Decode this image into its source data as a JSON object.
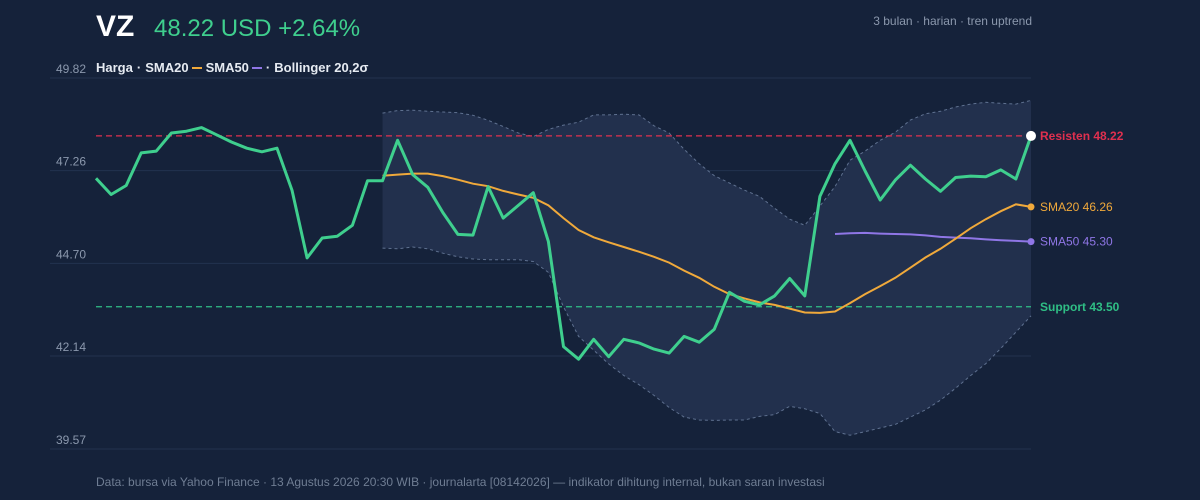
{
  "header": {
    "ticker": "VZ",
    "price_text": "48.22 USD +2.64%",
    "meta": "3 bulan · harian · tren uptrend"
  },
  "legend": {
    "price": "Harga",
    "sep": "·",
    "sma20": "SMA20",
    "sma50": "SMA50",
    "bollinger": "Bollinger 20,2σ"
  },
  "footer": "Data: bursa via Yahoo Finance · 13 Agustus 2026 20:30 WIB · journalarta [08142026] — indikator dihitung internal, bukan saran investasi",
  "colors": {
    "background": "#15223a",
    "price": "#3fcf8e",
    "sma20": "#f0a93b",
    "sma50": "#8f76e6",
    "resistance": "#e0304f",
    "support": "#2fbf85",
    "band_fill": "#22304d",
    "band_edge": "#5f7190"
  },
  "chart_data": {
    "type": "line",
    "x": [
      1,
      2,
      3,
      4,
      5,
      6,
      7,
      8,
      9,
      10,
      11,
      12,
      13,
      14,
      15,
      16,
      17,
      18,
      19,
      20,
      21,
      22,
      23,
      24,
      25,
      26,
      27,
      28,
      29,
      30,
      31,
      32,
      33,
      34,
      35,
      36,
      37,
      38,
      39,
      40,
      41,
      42,
      43,
      44,
      45,
      46,
      47,
      48,
      49,
      50,
      51,
      52,
      53,
      54,
      55,
      56,
      57,
      58,
      59,
      60,
      61,
      62,
      63
    ],
    "ylim": [
      39.57,
      49.82
    ],
    "yticks": [
      "49.82",
      "47.26",
      "44.70",
      "42.14",
      "39.57"
    ],
    "series": [
      {
        "name": "Harga",
        "values": [
          47.05,
          46.6,
          46.85,
          47.75,
          47.8,
          48.3,
          48.35,
          48.45,
          48.25,
          48.05,
          47.88,
          47.78,
          47.88,
          46.72,
          44.85,
          45.4,
          45.45,
          45.75,
          46.98,
          46.98,
          48.1,
          47.15,
          46.8,
          46.1,
          45.5,
          45.48,
          46.82,
          45.95,
          46.3,
          46.65,
          45.3,
          42.4,
          42.05,
          42.6,
          42.12,
          42.6,
          42.5,
          42.33,
          42.22,
          42.68,
          42.52,
          42.88,
          43.9,
          43.65,
          43.55,
          43.8,
          44.28,
          43.8,
          46.55,
          47.45,
          48.1,
          47.25,
          46.45,
          47.0,
          47.41,
          47.03,
          46.69,
          47.07,
          47.11,
          47.09,
          47.28,
          47.03,
          48.22
        ]
      },
      {
        "name": "SMA20",
        "values": [
          null,
          null,
          null,
          null,
          null,
          null,
          null,
          null,
          null,
          null,
          null,
          null,
          null,
          null,
          null,
          null,
          null,
          null,
          null,
          47.12,
          47.15,
          47.18,
          47.18,
          47.11,
          47.01,
          46.9,
          46.83,
          46.7,
          46.6,
          46.51,
          46.3,
          45.95,
          45.62,
          45.42,
          45.28,
          45.15,
          45.02,
          44.88,
          44.72,
          44.5,
          44.3,
          44.05,
          43.85,
          43.73,
          43.62,
          43.55,
          43.45,
          43.34,
          43.33,
          43.37,
          43.6,
          43.85,
          44.07,
          44.3,
          44.58,
          44.86,
          45.1,
          45.38,
          45.67,
          45.92,
          46.14,
          46.33,
          46.26
        ]
      },
      {
        "name": "SMA50",
        "values": [
          null,
          null,
          null,
          null,
          null,
          null,
          null,
          null,
          null,
          null,
          null,
          null,
          null,
          null,
          null,
          null,
          null,
          null,
          null,
          null,
          null,
          null,
          null,
          null,
          null,
          null,
          null,
          null,
          null,
          null,
          null,
          null,
          null,
          null,
          null,
          null,
          null,
          null,
          null,
          null,
          null,
          null,
          null,
          null,
          null,
          null,
          null,
          null,
          null,
          45.51,
          45.53,
          45.54,
          45.52,
          45.51,
          45.5,
          45.47,
          45.43,
          45.41,
          45.39,
          45.36,
          45.34,
          45.32,
          45.3
        ]
      }
    ],
    "bollinger": {
      "upper": [
        null,
        null,
        null,
        null,
        null,
        null,
        null,
        null,
        null,
        null,
        null,
        null,
        null,
        null,
        null,
        null,
        null,
        null,
        null,
        48.85,
        48.92,
        48.93,
        48.9,
        48.88,
        48.86,
        48.79,
        48.65,
        48.48,
        48.3,
        48.2,
        48.4,
        48.52,
        48.6,
        48.8,
        48.8,
        48.82,
        48.8,
        48.5,
        48.3,
        47.85,
        47.45,
        47.12,
        46.92,
        46.72,
        46.55,
        46.22,
        45.92,
        45.75,
        46.28,
        46.82,
        47.55,
        47.8,
        48.1,
        48.32,
        48.66,
        48.83,
        48.9,
        49.02,
        49.1,
        49.15,
        49.12,
        49.1,
        49.2
      ],
      "lower": [
        null,
        null,
        null,
        null,
        null,
        null,
        null,
        null,
        null,
        null,
        null,
        null,
        null,
        null,
        null,
        null,
        null,
        null,
        null,
        45.12,
        45.1,
        45.15,
        45.1,
        44.98,
        44.88,
        44.82,
        44.8,
        44.8,
        44.8,
        44.75,
        44.45,
        43.5,
        42.68,
        42.3,
        41.92,
        41.6,
        41.35,
        41.05,
        40.72,
        40.45,
        40.37,
        40.36,
        40.37,
        40.37,
        40.47,
        40.52,
        40.75,
        40.68,
        40.55,
        40.05,
        39.95,
        40.05,
        40.15,
        40.25,
        40.45,
        40.65,
        40.92,
        41.25,
        41.6,
        41.93,
        42.35,
        42.8,
        43.25
      ]
    },
    "levels": {
      "resistance": {
        "label": "Resisten 48.22",
        "value": 48.22
      },
      "support": {
        "label": "Support 43.50",
        "value": 43.5
      }
    },
    "end_labels": {
      "sma20": "SMA20 46.26",
      "sma50": "SMA50 45.30"
    }
  }
}
